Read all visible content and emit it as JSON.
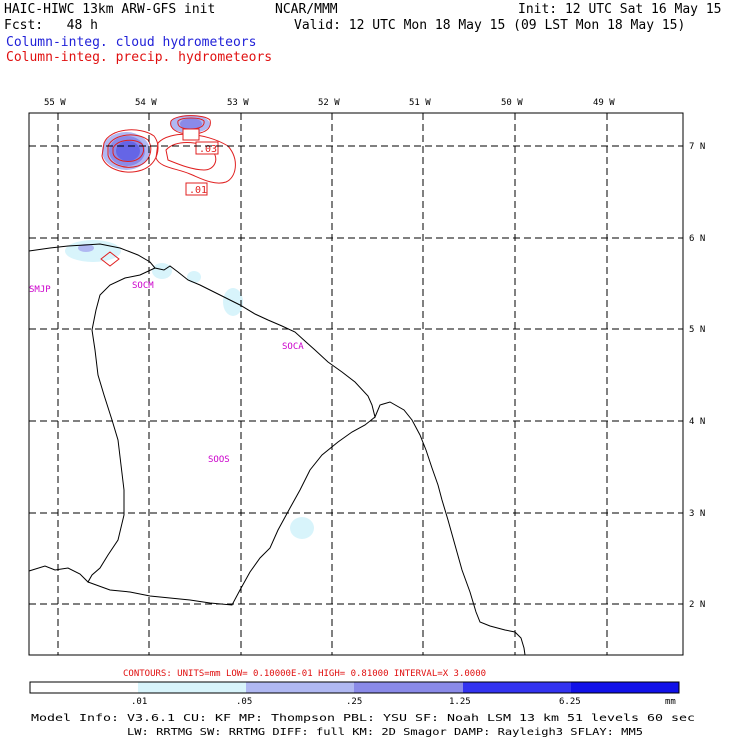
{
  "header": {
    "title": "HAIC-HIWC 13km ARW-GFS init",
    "source": "NCAR/MMM",
    "init": "Init: 12 UTC Sat 16 May 15",
    "fcst": "Fcst:   48 h",
    "valid": "Valid: 12 UTC Mon 18 May 15 (09 LST Mon 18 May 15)",
    "legend_cloud": "Column-integ. cloud hydrometeors",
    "legend_precip": "Column-integ. precip. hydrometeors"
  },
  "colors": {
    "cloud_legend": "#1f1fd8",
    "precip_legend": "#e01010",
    "station": "#cc00cc",
    "contour_line": "#e02020",
    "shade": [
      "#ffffff",
      "#d8f4fb",
      "#b0b8f2",
      "#8a8ae8",
      "#6565e6",
      "#3333f0",
      "#1111e8"
    ]
  },
  "map": {
    "lon_labels": [
      "55 W",
      "54 W",
      "53 W",
      "52 W",
      "51 W",
      "50 W",
      "49 W"
    ],
    "lat_labels": [
      "7 N",
      "6 N",
      "5 N",
      "4 N",
      "3 N",
      "2 N"
    ],
    "stations": [
      "SMJP",
      "SOCM",
      "SOCA",
      "SOOS"
    ],
    "contour_labels": [
      ".03",
      ".01"
    ]
  },
  "footer": {
    "contours_info": "CONTOURS:  UNITS=mm  LOW= 0.10000E-01  HIGH= 0.81000     INTERVAL=X  3.0000",
    "colorbar_ticks": [
      ".01",
      ".05",
      ".25",
      "1.25",
      "6.25",
      "mm"
    ],
    "model_line1": "Model Info: V3.6.1    CU: KF      MP: Thompson    PBL: YSU      SF: Noah LSM     13 km   51 levels   60 sec",
    "model_line2": "LW: RRTMG   SW: RRTMG  DIFF: full   KM: 2D Smagor DAMP: Rayleigh3  SFLAY: MM5"
  }
}
